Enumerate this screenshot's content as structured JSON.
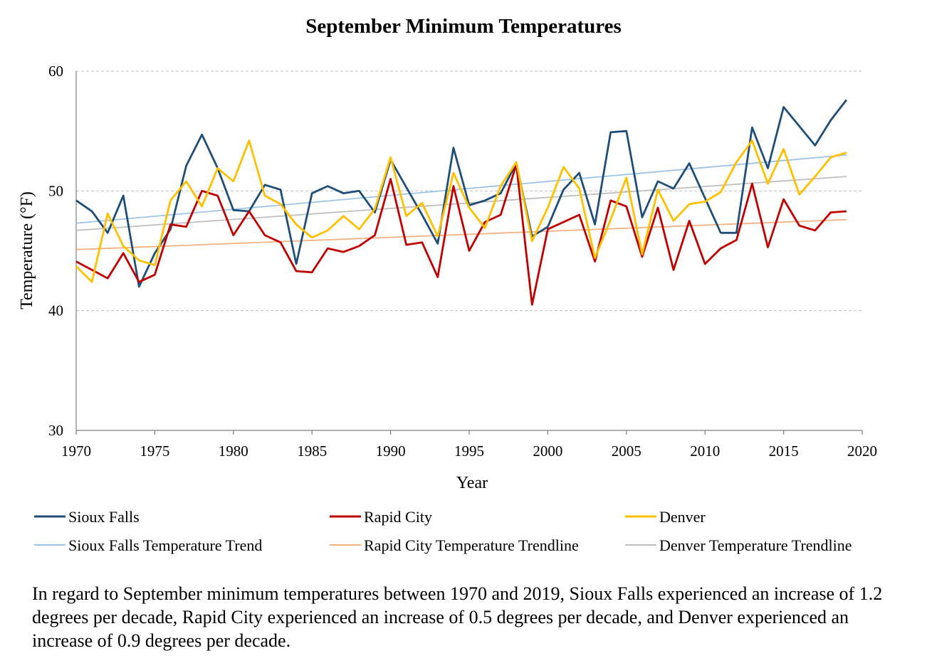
{
  "chart_data": {
    "type": "line",
    "title": "September Minimum Temperatures",
    "xlabel": "Year",
    "ylabel": "Temperature (°F)",
    "xlim": [
      1970,
      2020
    ],
    "ylim": [
      30,
      60
    ],
    "x_ticks": [
      1970,
      1975,
      1980,
      1985,
      1990,
      1995,
      2000,
      2005,
      2010,
      2015,
      2020
    ],
    "y_ticks": [
      30,
      40,
      50,
      60
    ],
    "grid": "horizontal dashed",
    "legend_position": "bottom",
    "x": [
      1970,
      1971,
      1972,
      1973,
      1974,
      1975,
      1976,
      1977,
      1978,
      1979,
      1980,
      1981,
      1982,
      1983,
      1984,
      1985,
      1986,
      1987,
      1988,
      1989,
      1990,
      1991,
      1992,
      1993,
      1994,
      1995,
      1996,
      1997,
      1998,
      1999,
      2000,
      2001,
      2002,
      2003,
      2004,
      2005,
      2006,
      2007,
      2008,
      2009,
      2010,
      2011,
      2012,
      2013,
      2014,
      2015,
      2016,
      2017,
      2018,
      2019
    ],
    "series": [
      {
        "name": "Sioux Falls",
        "color": "#1f4e79",
        "values": [
          49.2,
          48.3,
          46.5,
          49.6,
          42.0,
          44.8,
          46.8,
          52.1,
          54.7,
          51.9,
          48.4,
          48.3,
          50.5,
          50.1,
          43.9,
          49.8,
          50.4,
          49.8,
          50.0,
          48.2,
          52.6,
          50.3,
          48.0,
          45.6,
          53.6,
          48.8,
          49.2,
          49.8,
          52.3,
          46.2,
          47.0,
          50.1,
          51.5,
          47.2,
          54.9,
          55.0,
          47.8,
          50.8,
          50.2,
          52.3,
          49.4,
          46.5,
          46.5,
          55.3,
          51.9,
          57.0,
          55.4,
          53.8,
          55.9,
          57.6
        ]
      },
      {
        "name": "Rapid City",
        "color": "#c00000",
        "values": [
          44.1,
          43.4,
          42.7,
          44.8,
          42.4,
          43.0,
          47.2,
          47.0,
          50.0,
          49.6,
          46.3,
          48.3,
          46.3,
          45.7,
          43.3,
          43.2,
          45.2,
          44.9,
          45.4,
          46.3,
          51.0,
          45.5,
          45.7,
          42.8,
          50.4,
          45.0,
          47.4,
          48.0,
          52.2,
          40.5,
          46.8,
          47.4,
          48.0,
          44.1,
          49.2,
          48.7,
          44.5,
          48.6,
          43.4,
          47.5,
          43.9,
          45.2,
          45.9,
          50.6,
          45.3,
          49.3,
          47.1,
          46.7,
          48.2,
          48.3
        ]
      },
      {
        "name": "Denver",
        "color": "#ffc000",
        "values": [
          43.7,
          42.4,
          48.1,
          45.4,
          44.2,
          43.8,
          49.2,
          50.8,
          48.7,
          51.9,
          50.8,
          54.2,
          49.6,
          48.9,
          47.2,
          46.1,
          46.7,
          47.9,
          46.8,
          48.5,
          52.8,
          47.9,
          49.0,
          46.2,
          51.5,
          48.6,
          46.9,
          50.4,
          52.4,
          45.8,
          48.6,
          52.0,
          50.2,
          44.4,
          47.6,
          51.1,
          44.7,
          50.1,
          47.5,
          48.9,
          49.1,
          49.9,
          52.4,
          54.2,
          50.6,
          53.5,
          49.7,
          51.2,
          52.8,
          53.2
        ]
      },
      {
        "name": "Sioux Falls Temperature Trend",
        "color": "#9dc3e6",
        "trend": [
          1970,
          47.3,
          2019,
          53.0
        ]
      },
      {
        "name": "Rapid City Temperature Trendline",
        "color": "#f4b183",
        "trend": [
          1970,
          45.1,
          2019,
          47.6
        ]
      },
      {
        "name": "Denver Temperature Trendline",
        "color": "#bfbfbf",
        "trend": [
          1970,
          46.7,
          2019,
          51.2
        ]
      }
    ]
  },
  "caption": "In regard to September minimum temperatures between 1970 and 2019, Sioux Falls experienced an increase of 1.2 degrees per decade, Rapid City experienced an increase of 0.5 degrees per decade, and Denver experienced an increase of 0.9 degrees per decade."
}
